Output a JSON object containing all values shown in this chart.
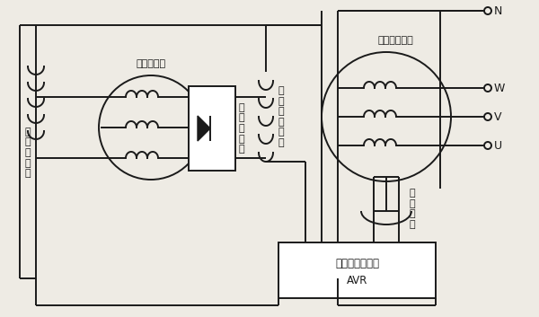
{
  "bg_color": "#eeebe4",
  "line_color": "#1a1a1a",
  "labels": {
    "jiao_li_ci_chang": "交\n励\n机\n磁\n场",
    "jiao_ji_dianji_diankuang": "交励机电枢",
    "xuanzhuan_zhengliuqiao": "旋\n转\n整\n流\n桥",
    "zhu_fadian_dianci_chang": "主\n发\n电\n机\n磁\n场",
    "zhu_fadian_diankuang": "主发电机电枢",
    "fuzhu_raozu": "辅\n助\n绕\n组",
    "avr_label1": "自动电压调节器",
    "avr_label2": "AVR",
    "N": "N",
    "W": "W",
    "V": "V",
    "U": "U"
  },
  "font_size": 8,
  "font_family": "SimSun",
  "lw": 1.4
}
